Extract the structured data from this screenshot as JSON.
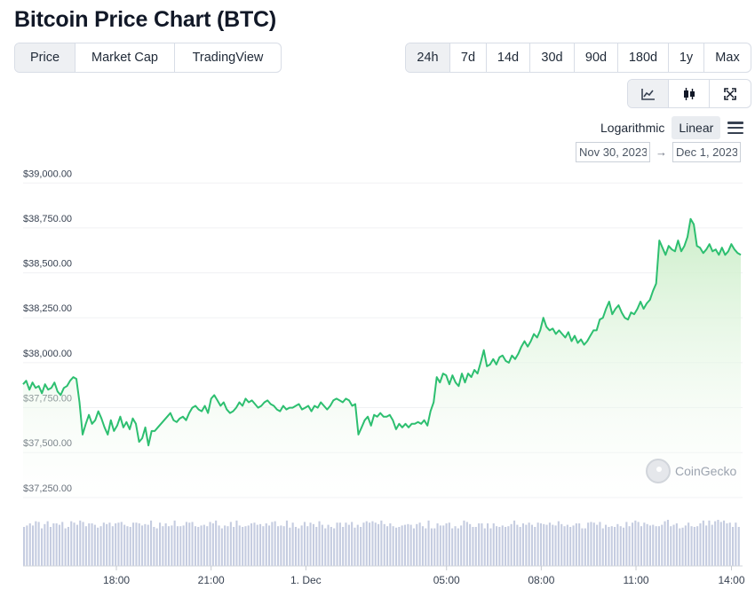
{
  "page": {
    "title": "Bitcoin Price Chart (BTC)"
  },
  "view_tabs": [
    {
      "label": "Price",
      "active": true
    },
    {
      "label": "Market Cap",
      "active": false
    },
    {
      "label": "TradingView",
      "active": false
    }
  ],
  "range_tabs": [
    {
      "label": "24h",
      "active": true
    },
    {
      "label": "7d",
      "active": false
    },
    {
      "label": "14d",
      "active": false
    },
    {
      "label": "30d",
      "active": false
    },
    {
      "label": "90d",
      "active": false
    },
    {
      "label": "180d",
      "active": false
    },
    {
      "label": "1y",
      "active": false
    },
    {
      "label": "Max",
      "active": false
    }
  ],
  "chart_types": [
    {
      "icon": "line-chart-icon",
      "active": true
    },
    {
      "icon": "candlestick-icon",
      "active": false
    },
    {
      "icon": "fullscreen-icon",
      "active": false
    }
  ],
  "scale": {
    "logarithmic_label": "Logarithmic",
    "linear_label": "Linear",
    "active": "Linear"
  },
  "date_range": {
    "from": "Nov 30, 2023",
    "arrow": "→",
    "to": "Dec 1, 2023"
  },
  "watermark": {
    "text": "CoinGecko"
  },
  "colors": {
    "line": "#2dbf70",
    "fill_top": "#bfeac2",
    "volume": "#c5cce0",
    "grid": "#f0f1f3"
  },
  "chart_data": {
    "type": "area",
    "series": [
      {
        "values": [
          37880,
          37900,
          37850,
          37890,
          37860,
          37870,
          37830,
          37880,
          37850,
          37860,
          37890,
          37840,
          37820,
          37860,
          37870,
          37900,
          37920,
          37910,
          37780,
          37600,
          37660,
          37710,
          37660,
          37680,
          37730,
          37690,
          37640,
          37600,
          37680,
          37620,
          37650,
          37700,
          37640,
          37670,
          37630,
          37690,
          37660,
          37560,
          37580,
          37640,
          37540,
          37620,
          37620,
          37640,
          37660,
          37680,
          37700,
          37720,
          37680,
          37670,
          37690,
          37700,
          37680,
          37720,
          37750,
          37760,
          37740,
          37730,
          37760,
          37720,
          37800,
          37820,
          37790,
          37760,
          37780,
          37740,
          37720,
          37730,
          37750,
          37780,
          37760,
          37800,
          37780,
          37790,
          37770,
          37750,
          37760,
          37780,
          37790,
          37770,
          37760,
          37740,
          37730,
          37760,
          37740,
          37750,
          37750,
          37760,
          37770,
          37740,
          37750,
          37760,
          37730,
          37760,
          37750,
          37780,
          37760,
          37740,
          37760,
          37790,
          37800,
          37790,
          37780,
          37800,
          37790,
          37760,
          37770,
          37600,
          37640,
          37680,
          37700,
          37650,
          37710,
          37700,
          37720,
          37700,
          37700,
          37710,
          37680,
          37630,
          37660,
          37640,
          37660,
          37640,
          37660,
          37660,
          37670,
          37660,
          37680,
          37650,
          37730,
          37780,
          37920,
          37890,
          37940,
          37930,
          37880,
          37930,
          37890,
          37870,
          37940,
          37890,
          37940,
          37920,
          37960,
          37940,
          38000,
          38070,
          37980,
          37990,
          38020,
          37990,
          38030,
          38040,
          38010,
          38000,
          38040,
          38020,
          38050,
          38090,
          38120,
          38090,
          38120,
          38160,
          38140,
          38180,
          38250,
          38200,
          38180,
          38190,
          38160,
          38180,
          38160,
          38140,
          38170,
          38120,
          38150,
          38110,
          38130,
          38100,
          38120,
          38150,
          38180,
          38180,
          38240,
          38250,
          38300,
          38340,
          38270,
          38300,
          38320,
          38280,
          38250,
          38240,
          38280,
          38270,
          38300,
          38340,
          38300,
          38330,
          38350,
          38400,
          38440,
          38680,
          38640,
          38600,
          38650,
          38630,
          38620,
          38680,
          38620,
          38650,
          38700,
          38800,
          38770,
          38650,
          38640,
          38610,
          38630,
          38660,
          38620,
          38630,
          38600,
          38640,
          38600,
          38620,
          38660,
          38630,
          38610,
          38600
        ]
      }
    ],
    "volume": [
      0.55,
      0.57,
      0.6,
      0.57,
      0.63,
      0.62,
      0.53,
      0.59,
      0.63,
      0.55,
      0.6,
      0.6,
      0.58,
      0.62,
      0.53,
      0.55,
      0.63,
      0.61,
      0.58,
      0.64,
      0.62,
      0.56,
      0.6,
      0.6,
      0.58,
      0.54,
      0.56,
      0.61,
      0.59,
      0.61,
      0.56,
      0.6,
      0.61,
      0.62,
      0.58,
      0.56,
      0.55,
      0.61,
      0.61,
      0.6,
      0.57,
      0.59,
      0.58,
      0.64,
      0.55,
      0.53,
      0.61,
      0.56,
      0.6,
      0.56,
      0.57,
      0.64,
      0.56,
      0.56,
      0.57,
      0.62,
      0.61,
      0.62,
      0.56,
      0.55,
      0.57,
      0.58,
      0.56,
      0.62,
      0.6,
      0.64,
      0.57,
      0.53,
      0.57,
      0.56,
      0.62,
      0.55,
      0.64,
      0.57,
      0.55,
      0.56,
      0.57,
      0.6,
      0.61,
      0.58,
      0.59,
      0.56,
      0.6,
      0.57,
      0.62,
      0.63,
      0.56,
      0.57,
      0.56,
      0.64,
      0.54,
      0.61,
      0.55,
      0.53,
      0.57,
      0.62,
      0.56,
      0.61,
      0.59,
      0.55,
      0.63,
      0.58,
      0.53,
      0.58,
      0.55,
      0.53,
      0.61,
      0.61,
      0.55,
      0.61,
      0.58,
      0.62,
      0.54,
      0.58,
      0.55,
      0.61,
      0.63,
      0.61,
      0.63,
      0.61,
      0.59,
      0.64,
      0.59,
      0.56,
      0.6,
      0.56,
      0.54,
      0.55,
      0.57,
      0.58,
      0.59,
      0.58,
      0.53,
      0.59,
      0.61,
      0.56,
      0.53,
      0.64,
      0.53,
      0.53,
      0.6,
      0.57,
      0.57,
      0.6,
      0.61,
      0.53,
      0.56,
      0.53,
      0.57,
      0.64,
      0.62,
      0.59,
      0.55,
      0.55,
      0.6,
      0.6,
      0.53,
      0.6,
      0.53,
      0.6,
      0.56,
      0.55,
      0.57,
      0.55,
      0.56,
      0.59,
      0.64,
      0.58,
      0.55,
      0.6,
      0.58,
      0.61,
      0.58,
      0.55,
      0.61,
      0.6,
      0.59,
      0.58,
      0.61,
      0.58,
      0.57,
      0.63,
      0.59,
      0.56,
      0.58,
      0.55,
      0.57,
      0.6,
      0.6,
      0.53,
      0.53,
      0.61,
      0.62,
      0.61,
      0.58,
      0.62,
      0.53,
      0.58,
      0.55,
      0.56,
      0.55,
      0.59,
      0.56,
      0.54,
      0.62,
      0.56,
      0.61,
      0.64,
      0.62,
      0.56,
      0.61,
      0.59,
      0.57,
      0.58,
      0.56,
      0.56,
      0.58,
      0.63,
      0.65,
      0.56,
      0.58,
      0.6,
      0.53,
      0.54,
      0.57,
      0.61,
      0.56,
      0.55,
      0.56,
      0.6,
      0.64,
      0.57,
      0.64,
      0.58,
      0.63,
      0.65,
      0.62,
      0.64,
      0.6,
      0.61,
      0.55,
      0.61,
      0.55
    ],
    "y_ticks": [
      "$39,000.00",
      "$38,750.00",
      "$38,500.00",
      "$38,250.00",
      "$38,000.00",
      "$37,750.00",
      "$37,500.00",
      "$37,250.00"
    ],
    "y_tick_values": [
      39000,
      38750,
      38500,
      38250,
      38000,
      37750,
      37500,
      37250
    ],
    "x_ticks": [
      "18:00",
      "21:00",
      "1. Dec",
      "05:00",
      "08:00",
      "11:00",
      "14:00"
    ],
    "x_tick_positions_fraction": [
      0.13,
      0.262,
      0.394,
      0.59,
      0.722,
      0.854,
      0.987
    ],
    "ylim": [
      37200,
      39100
    ],
    "grid": true,
    "legend": "none"
  }
}
